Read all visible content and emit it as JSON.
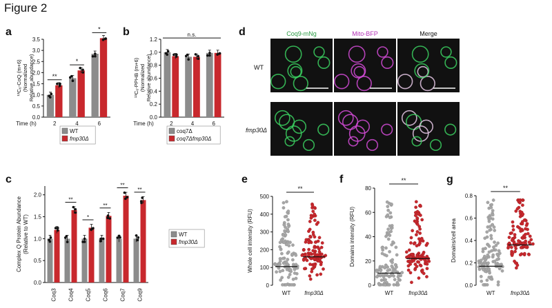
{
  "figure_title": "Figure 2",
  "colors": {
    "wt": "#8c8c8c",
    "mut": "#c8282d",
    "green": "#3bd060",
    "magenta": "#d24bd6"
  },
  "panels": {
    "a": {
      "label": "a",
      "ylabel_lines": [
        "¹³C₆-CoQ (m+6)",
        "(Normalized",
        "Relative abundance)"
      ],
      "xaxis_title": "Time (h)",
      "legend": [
        "WT",
        "fmp30Δ"
      ]
    },
    "b": {
      "label": "b",
      "ylabel_lines": [
        "¹³C₆-PPHB (m+6)",
        "(Normalized",
        "Relative abundance)"
      ],
      "xaxis_title": "Time (h)",
      "legend": [
        "coq7Δ",
        "coq7Δfmp30Δ"
      ],
      "sig_label": "n.s."
    },
    "c": {
      "label": "c",
      "ylabel_lines": [
        "Complex Q Protein Abundance",
        "(Relative to WT)"
      ],
      "legend": [
        "WT",
        "fmp30Δ"
      ]
    },
    "d": {
      "label": "d",
      "col_headers": [
        "Coq9-mNg",
        "Mito-BFP",
        "Merge"
      ],
      "row_labels": [
        "WT",
        "fmp30Δ"
      ]
    },
    "e": {
      "label": "e",
      "ylabel": "Whole cell intensity (RFU)"
    },
    "f": {
      "label": "f",
      "ylabel": "Domains intensity (RFU)"
    },
    "g": {
      "label": "g",
      "ylabel": "Domains/cell area"
    }
  },
  "chart_data": [
    {
      "panel": "a",
      "type": "bar",
      "categories": [
        "2",
        "4",
        "6"
      ],
      "series": [
        {
          "name": "WT",
          "values": [
            1.0,
            1.75,
            2.85
          ]
        },
        {
          "name": "fmp30Δ",
          "values": [
            1.43,
            2.1,
            3.55
          ]
        }
      ],
      "ylim": [
        0,
        3.5
      ],
      "yticks": [
        0,
        0.5,
        1.0,
        1.5,
        2.0,
        2.5,
        3.0,
        3.5
      ],
      "significance": [
        "**",
        "*",
        "*"
      ]
    },
    {
      "panel": "b",
      "type": "bar",
      "categories": [
        "2",
        "4",
        "6"
      ],
      "series": [
        {
          "name": "coq7Δ",
          "values": [
            1.0,
            0.93,
            0.99
          ]
        },
        {
          "name": "coq7Δfmp30Δ",
          "values": [
            0.94,
            0.93,
            0.99
          ]
        }
      ],
      "ylim": [
        0,
        1.2
      ],
      "yticks": [
        0,
        0.2,
        0.4,
        0.6,
        0.8,
        1.0,
        1.2
      ],
      "significance": [
        "n.s."
      ]
    },
    {
      "panel": "c",
      "type": "bar",
      "categories": [
        "Coq3",
        "Coq4",
        "Coq5",
        "Coq6",
        "Coq7",
        "Coq9"
      ],
      "series": [
        {
          "name": "WT",
          "values": [
            1.0,
            1.0,
            1.0,
            1.0,
            1.0,
            1.0
          ]
        },
        {
          "name": "fmp30Δ",
          "values": [
            1.2,
            1.65,
            1.25,
            1.52,
            1.98,
            1.88
          ]
        }
      ],
      "ylim": [
        0,
        2.2
      ],
      "yticks": [
        0,
        0.5,
        1.0,
        1.5,
        2.0
      ],
      "significance": [
        "",
        "**",
        "*",
        "**",
        "**",
        "**"
      ]
    },
    {
      "panel": "e",
      "type": "scatter",
      "categories": [
        "WT",
        "fmp30Δ"
      ],
      "medians": [
        105,
        160
      ],
      "ylim": [
        0,
        500
      ],
      "yticks": [
        0,
        100,
        200,
        300,
        400,
        500
      ],
      "significance": "**"
    },
    {
      "panel": "f",
      "type": "scatter",
      "categories": [
        "WT",
        "fmp30Δ"
      ],
      "medians": [
        10,
        22
      ],
      "ylim": [
        0,
        80
      ],
      "yticks": [
        0,
        20,
        40,
        60,
        80
      ],
      "significance": "**"
    },
    {
      "panel": "g",
      "type": "scatter",
      "categories": [
        "WT",
        "fmp30Δ"
      ],
      "medians": [
        0.17,
        0.36
      ],
      "ylim": [
        0,
        0.8
      ],
      "yticks": [
        0.0,
        0.2,
        0.4,
        0.6,
        0.8
      ],
      "significance": "**"
    }
  ]
}
